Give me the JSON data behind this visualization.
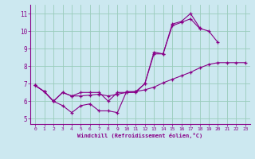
{
  "xlabel": "Windchill (Refroidissement éolien,°C)",
  "background_color": "#cce8f0",
  "line_color": "#880088",
  "grid_color": "#99ccbb",
  "xlim": [
    -0.5,
    23.5
  ],
  "ylim": [
    4.7,
    11.5
  ],
  "xticks": [
    0,
    1,
    2,
    3,
    4,
    5,
    6,
    7,
    8,
    9,
    10,
    11,
    12,
    13,
    14,
    15,
    16,
    17,
    18,
    19,
    20,
    21,
    22,
    23
  ],
  "yticks": [
    5,
    6,
    7,
    8,
    9,
    10,
    11
  ],
  "line1_x": [
    0,
    1,
    2,
    3,
    4,
    5,
    6,
    7,
    8,
    9,
    10,
    11,
    12,
    13,
    14,
    15,
    16,
    17,
    18
  ],
  "line1_y": [
    6.9,
    6.55,
    6.0,
    5.75,
    5.35,
    5.75,
    5.85,
    5.45,
    5.45,
    5.35,
    6.55,
    6.55,
    7.0,
    8.8,
    8.7,
    10.4,
    10.55,
    11.0,
    10.2
  ],
  "line2_x": [
    0,
    1,
    2,
    3,
    4,
    5,
    6,
    7,
    8,
    9,
    10,
    11,
    12,
    13,
    14,
    15,
    16,
    17,
    18,
    19,
    20
  ],
  "line2_y": [
    6.9,
    6.55,
    6.0,
    6.5,
    6.3,
    6.5,
    6.5,
    6.5,
    6.0,
    6.5,
    6.5,
    6.5,
    7.0,
    8.7,
    8.7,
    10.3,
    10.5,
    10.7,
    10.15,
    10.0,
    9.35
  ],
  "line3_x": [
    0,
    1,
    2,
    3,
    4,
    5,
    6,
    7,
    8,
    9,
    10,
    11,
    12,
    13,
    14,
    15,
    16,
    17,
    18,
    19,
    20,
    21,
    22,
    23
  ],
  "line3_y": [
    6.9,
    6.55,
    6.0,
    6.5,
    6.3,
    6.3,
    6.35,
    6.4,
    6.3,
    6.4,
    6.5,
    6.55,
    6.65,
    6.8,
    7.05,
    7.25,
    7.45,
    7.65,
    7.9,
    8.1,
    8.2,
    8.2,
    8.2,
    8.2
  ]
}
